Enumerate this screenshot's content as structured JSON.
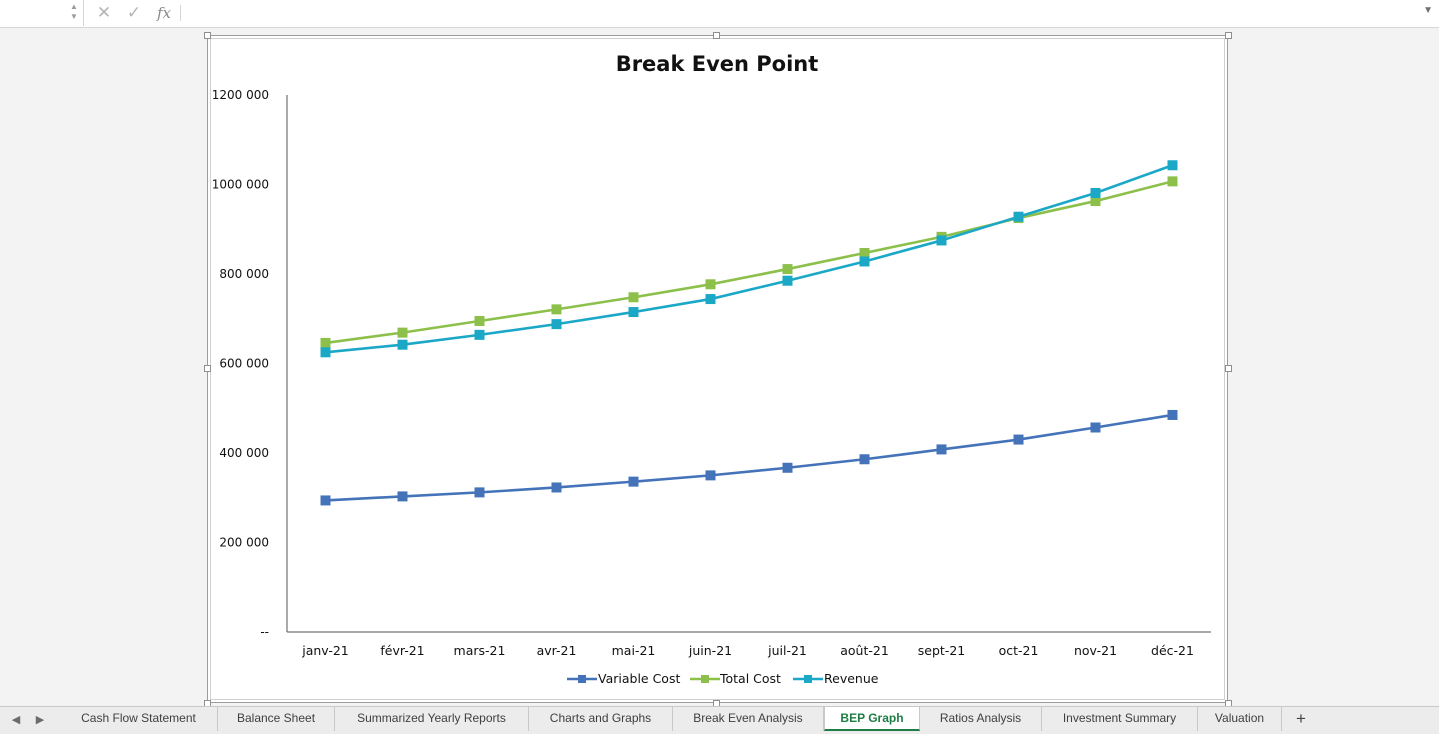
{
  "formula_bar": {
    "name_box_value": "",
    "cancel_icon": "x-icon",
    "confirm_icon": "check-icon",
    "function_icon": "fx-icon",
    "fx_label": "fx",
    "formula_value": ""
  },
  "chart_data": {
    "type": "line",
    "title": "Break Even Point",
    "xlabel": "",
    "ylabel": "",
    "categories": [
      "janv-21",
      "févr-21",
      "mars-21",
      "avr-21",
      "mai-21",
      "juin-21",
      "juil-21",
      "août-21",
      "sept-21",
      "oct-21",
      "nov-21",
      "déc-21"
    ],
    "ylim": [
      0,
      1200000
    ],
    "yticks": [
      0,
      200000,
      400000,
      600000,
      800000,
      1000000,
      1200000
    ],
    "ytick_labels": [
      "--",
      "200 000",
      "400 000",
      "600 000",
      "800 000",
      "1000 000",
      "1200 000"
    ],
    "grid": false,
    "legend_position": "bottom",
    "series": [
      {
        "name": "Variable Cost",
        "color": "#4473b9",
        "values": [
          294000,
          303000,
          312000,
          323000,
          336000,
          350000,
          367000,
          386000,
          408000,
          430000,
          457000,
          485000
        ]
      },
      {
        "name": "Total Cost",
        "color": "#8cc04b",
        "values": [
          646000,
          669000,
          695000,
          721000,
          748000,
          777000,
          811000,
          847000,
          883000,
          925000,
          963000,
          1007000
        ]
      },
      {
        "name": "Revenue",
        "color": "#1ba8c7",
        "values": [
          625000,
          642000,
          664000,
          688000,
          715000,
          744000,
          785000,
          828000,
          875000,
          928000,
          981000,
          1043000
        ]
      }
    ]
  },
  "sheet_tabs": {
    "items": [
      {
        "label": "Cash Flow Statement",
        "active": false
      },
      {
        "label": "Balance Sheet",
        "active": false
      },
      {
        "label": "Summarized Yearly Reports",
        "active": false
      },
      {
        "label": "Charts and Graphs",
        "active": false
      },
      {
        "label": "Break Even Analysis",
        "active": false
      },
      {
        "label": "BEP Graph",
        "active": true
      },
      {
        "label": "Ratios Analysis",
        "active": false
      },
      {
        "label": "Investment Summary",
        "active": false
      },
      {
        "label": "Valuation",
        "active": false
      }
    ],
    "add_label": "+",
    "prev_icon": "triangle-left-icon",
    "next_icon": "triangle-right-icon"
  }
}
